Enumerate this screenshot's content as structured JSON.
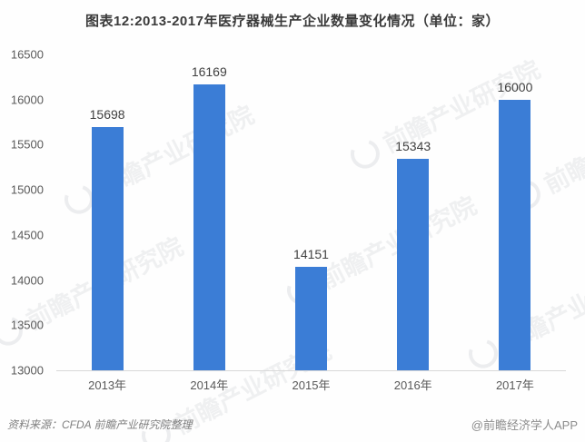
{
  "title": "图表12:2013-2017年医疗器械生产企业数量变化情况（单位：家）",
  "chart_data": {
    "type": "bar",
    "title": "图表12:2013-2017年医疗器械生产企业数量变化情况（单位：家）",
    "categories": [
      "2013年",
      "2014年",
      "2015年",
      "2016年",
      "2017年"
    ],
    "values": [
      15698,
      16169,
      14151,
      15343,
      16000
    ],
    "xlabel": "",
    "ylabel": "",
    "unit": "家",
    "ylim": [
      13000,
      16500
    ],
    "yticks": [
      16500,
      16000,
      15500,
      15000,
      14500,
      14000,
      13500,
      13000
    ],
    "grid": false,
    "legend": "none",
    "bar_color": "#3b7dd6",
    "axis_line_color": "#d9d9d9",
    "value_label_color": "#3f3f3f",
    "tick_label_color": "#595959"
  },
  "footer": {
    "source": "资料来源：CFDA  前瞻产业研究院整理",
    "credit": "@前瞻经济学人APP"
  },
  "watermark": {
    "text": "前瞻产业研究院"
  }
}
